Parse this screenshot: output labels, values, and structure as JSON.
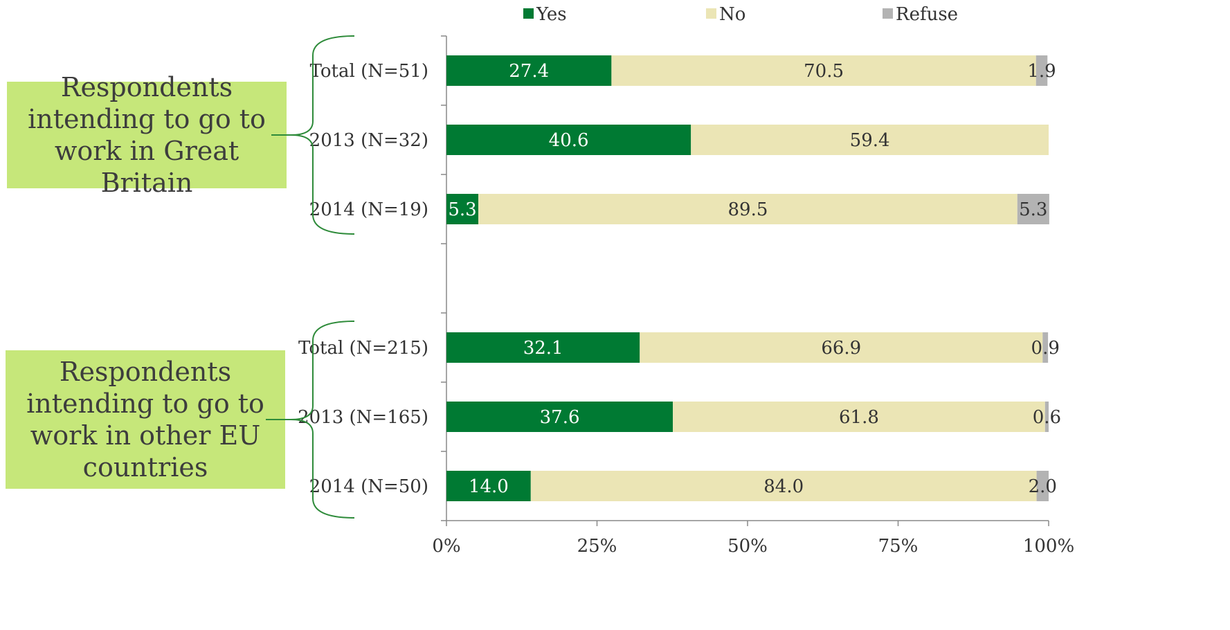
{
  "chart_data": {
    "type": "bar",
    "orientation": "horizontal",
    "stacked": true,
    "title": "",
    "xlabel": "",
    "ylabel": "",
    "xlim": [
      0,
      100
    ],
    "x_ticks": [
      "0%",
      "25%",
      "50%",
      "75%",
      "100%"
    ],
    "grid": false,
    "legend_position": "top",
    "colors": {
      "Yes": "#007a33",
      "No": "#ebe5b5",
      "Refuse": "#b3b3b3"
    },
    "groups": [
      {
        "label": "Respondents intending to go to work in Great Britain",
        "categories": [
          "Total (N=51)",
          "2013 (N=32)",
          "2014 (N=19)"
        ]
      },
      {
        "label": "Respondents intending to go to work in other EU countries",
        "categories": [
          "Total (N=215)",
          "2013 (N=165)",
          "2014 (N=50)"
        ]
      }
    ],
    "series": [
      {
        "name": "Yes",
        "values": [
          27.4,
          40.6,
          5.3,
          32.1,
          37.6,
          14.0
        ],
        "labels": [
          "27.4",
          "40.6",
          "5.3",
          "32.1",
          "37.6",
          "14.0"
        ]
      },
      {
        "name": "No",
        "values": [
          70.5,
          59.4,
          89.5,
          66.9,
          61.8,
          84.0
        ],
        "labels": [
          "70.5",
          "59.4",
          "89.5",
          "66.9",
          "61.8",
          "84.0"
        ]
      },
      {
        "name": "Refuse",
        "values": [
          1.9,
          0,
          5.3,
          0.9,
          0.6,
          2.0
        ],
        "labels": [
          "1.9",
          "",
          "5.3",
          "0.9",
          "0.6",
          "2.0"
        ]
      }
    ]
  }
}
